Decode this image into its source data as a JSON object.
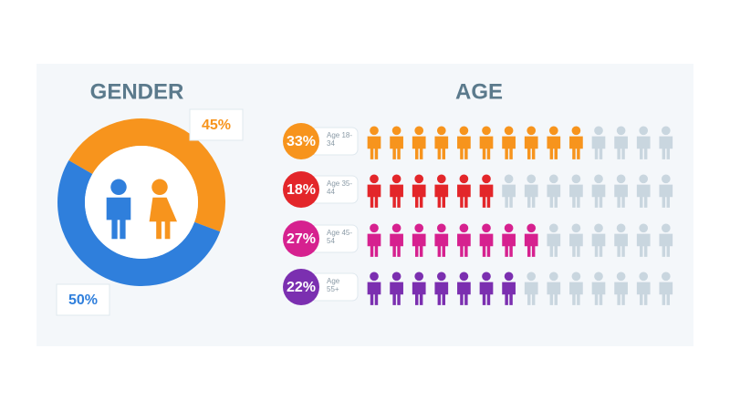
{
  "chart_data": [
    {
      "type": "donut",
      "title": "GENDER",
      "values": [
        45,
        50
      ],
      "value_labels": [
        "45%",
        "50%"
      ],
      "colors": [
        "#f7941d",
        "#2f7fdc"
      ]
    },
    {
      "type": "pictogram",
      "title": "AGE",
      "categories": [
        "Age 18-34",
        "Age 35-44",
        "Age 45-54",
        "Age 55+"
      ],
      "values": [
        33,
        18,
        27,
        22
      ],
      "value_labels": [
        "33%",
        "18%",
        "27%",
        "22%"
      ],
      "colors": [
        "#f7941d",
        "#e3262a",
        "#d6218f",
        "#7b2fb0"
      ],
      "filled": [
        10,
        6,
        8,
        7
      ],
      "icons": 14,
      "empty_color": "#c9d6df"
    }
  ]
}
